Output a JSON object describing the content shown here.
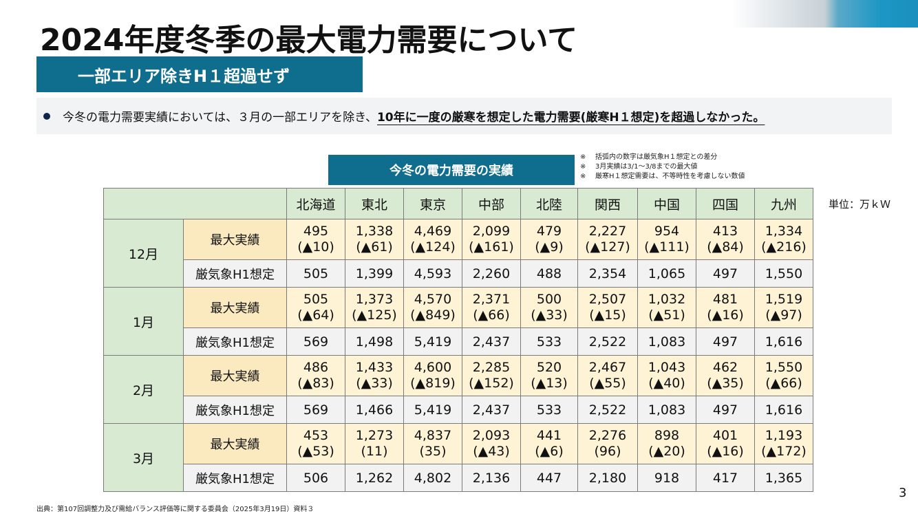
{
  "title": "2024年度冬季の最大電力需要について",
  "subtitle": "一部エリア除きH１超過せず",
  "bullet": {
    "normal": "今冬の電力需要実績においては、３月の一部エリアを除き、",
    "strong": "10年に一度の厳寒を想定した電力需要(厳寒H１想定)を超過しなかった。"
  },
  "table_caption": "今冬の電力需要の実績",
  "notes": [
    {
      "mark": "※",
      "text": "括弧内の数字は厳気象H１想定との差分"
    },
    {
      "mark": "※",
      "text": "3月実績は3/1～3/8までの最大値"
    },
    {
      "mark": "※",
      "text": "厳寒H１想定需要は、不等時性を考慮しない数値"
    }
  ],
  "unit": "単位：万ｋＷ",
  "table": {
    "regions": [
      "北海道",
      "東北",
      "東京",
      "中部",
      "北陸",
      "関西",
      "中国",
      "四国",
      "九州"
    ],
    "row_labels": {
      "actual": "最大実績",
      "plan": "厳気象H1想定"
    },
    "months": [
      {
        "month": "12月",
        "actual": [
          "495",
          "1,338",
          "4,469",
          "2,099",
          "479",
          "2,227",
          "954",
          "413",
          "1,334"
        ],
        "diff": [
          "(▲10)",
          "(▲61)",
          "(▲124)",
          "(▲161)",
          "(▲9)",
          "(▲127)",
          "(▲111)",
          "(▲84)",
          "(▲216)"
        ],
        "plan": [
          "505",
          "1,399",
          "4,593",
          "2,260",
          "488",
          "2,354",
          "1,065",
          "497",
          "1,550"
        ]
      },
      {
        "month": "1月",
        "actual": [
          "505",
          "1,373",
          "4,570",
          "2,371",
          "500",
          "2,507",
          "1,032",
          "481",
          "1,519"
        ],
        "diff": [
          "(▲64)",
          "(▲125)",
          "(▲849)",
          "(▲66)",
          "(▲33)",
          "(▲15)",
          "(▲51)",
          "(▲16)",
          "(▲97)"
        ],
        "plan": [
          "569",
          "1,498",
          "5,419",
          "2,437",
          "533",
          "2,522",
          "1,083",
          "497",
          "1,616"
        ]
      },
      {
        "month": "2月",
        "actual": [
          "486",
          "1,433",
          "4,600",
          "2,285",
          "520",
          "2,467",
          "1,043",
          "462",
          "1,550"
        ],
        "diff": [
          "(▲83)",
          "(▲33)",
          "(▲819)",
          "(▲152)",
          "(▲13)",
          "(▲55)",
          "(▲40)",
          "(▲35)",
          "(▲66)"
        ],
        "plan": [
          "569",
          "1,466",
          "5,419",
          "2,437",
          "533",
          "2,522",
          "1,083",
          "497",
          "1,616"
        ]
      },
      {
        "month": "3月",
        "actual": [
          "453",
          "1,273",
          "4,837",
          "2,093",
          "441",
          "2,276",
          "898",
          "401",
          "1,193"
        ],
        "diff": [
          "(▲53)",
          "(11)",
          "(35)",
          "(▲43)",
          "(▲6)",
          "(96)",
          "(▲20)",
          "(▲16)",
          "(▲172)"
        ],
        "plan": [
          "506",
          "1,262",
          "4,802",
          "2,136",
          "447",
          "2,180",
          "918",
          "417",
          "1,365"
        ]
      }
    ]
  },
  "source": "出典：第107回調整力及び需給バランス評価等に関する委員会（2025年3月19日）資料３",
  "page_number": "3"
}
